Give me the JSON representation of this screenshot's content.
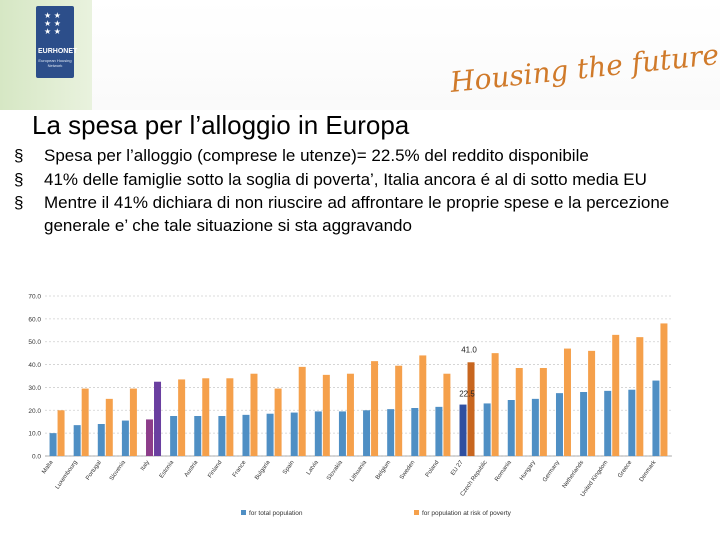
{
  "header": {
    "logo_text": "EURHONET",
    "logo_subtext": "European Housing Network",
    "tagline": "Housing the future"
  },
  "title": "La spesa per l’alloggio in Europa",
  "bullets": [
    "Spesa per l’alloggio (comprese le utenze)= 22.5% del reddito disponibile",
    "41% delle famiglie sotto la soglia di poverta’, Italia ancora é al di sotto media EU",
    "Mentre il 41% dichiara di non riuscire ad affrontare le proprie spese e la percezione generale e’ che tale situazione si sta aggravando"
  ],
  "bullet_symbol": "§",
  "colors": {
    "total": "#4f8fc4",
    "poverty": "#f5a04b",
    "italy_total": "#8d3d8a",
    "italy_poverty": "#6a3fa0",
    "eu_total": "#2f4fa0",
    "eu_poverty": "#c8661f",
    "logo_bg": "#2c4e8a",
    "tagline": "#d07a2a"
  },
  "chart_data": {
    "type": "bar",
    "categories": [
      "Malta",
      "Luxembourg",
      "Portugal",
      "Slovenia",
      "Italy",
      "Estonia",
      "Austria",
      "Finland",
      "France",
      "Bulgaria",
      "Spain",
      "Latvia",
      "Slovakia",
      "Lithuania",
      "Belgium",
      "Sweden",
      "Poland",
      "EU 27",
      "Czech Republic",
      "Romania",
      "Hungary",
      "Germany",
      "Netherlands",
      "United Kingdom",
      "Greece",
      "Denmark"
    ],
    "series": [
      {
        "name": "for total population",
        "values": [
          10,
          13.5,
          14,
          15.5,
          16,
          17.5,
          17.5,
          17.5,
          18,
          18.5,
          19,
          19.5,
          19.5,
          20,
          20.5,
          21,
          21.5,
          22.5,
          23,
          24.5,
          25,
          27.5,
          28,
          28.5,
          29,
          33
        ]
      },
      {
        "name": "for population at risk of poverty",
        "values": [
          20,
          29.5,
          25,
          29.5,
          32.5,
          33.5,
          34,
          34,
          36,
          29.5,
          39,
          35.5,
          36,
          41.5,
          39.5,
          44,
          36,
          41,
          45,
          38.5,
          38.5,
          47,
          46,
          53,
          52,
          58
        ]
      }
    ],
    "annotations": [
      "41.0",
      "22.5"
    ],
    "highlight": [
      "Italy",
      "EU 27"
    ],
    "yticks": [
      "0.0",
      "10.0",
      "20.0",
      "30.0",
      "40.0",
      "50.0",
      "60.0",
      "70.0"
    ],
    "ylim": [
      0,
      70
    ],
    "legend_position": "bottom"
  }
}
